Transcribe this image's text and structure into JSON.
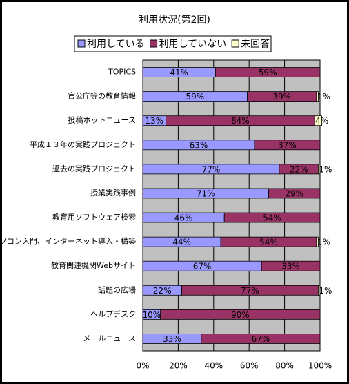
{
  "chart_data": {
    "type": "bar",
    "orientation": "horizontal",
    "stacked": true,
    "title": "利用状況(第2回)",
    "categories": [
      "TOPICS",
      "官公庁等の教育情報",
      "投稿ホットニュース",
      "平成１３年の実践プロジェクト",
      "過去の実践プロジェクト",
      "授業実践事例",
      "教育用ソフトウェア検索",
      "パソコン入門、インターネット導入・構築",
      "教育関連機関Webサイト",
      "話題の広場",
      "ヘルプデスク",
      "メールニュース"
    ],
    "series": [
      {
        "name": "利用している",
        "color": "#9999ff",
        "values": [
          41,
          59,
          13,
          63,
          77,
          71,
          46,
          44,
          67,
          22,
          10,
          33
        ],
        "value_labels": [
          "41%",
          "59%",
          "13%",
          "63%",
          "77%",
          "71%",
          "46%",
          "44%",
          "67%",
          "22%",
          "10%",
          "33%"
        ]
      },
      {
        "name": "利用していない",
        "color": "#993366",
        "values": [
          59,
          39,
          84,
          37,
          22,
          29,
          54,
          54,
          33,
          77,
          90,
          67
        ],
        "value_labels": [
          "59%",
          "39%",
          "84%",
          "37%",
          "22%",
          "29%",
          "54%",
          "54%",
          "33%",
          "77%",
          "90%",
          "67%"
        ]
      },
      {
        "name": "未回答",
        "color": "#ffffcc",
        "values": [
          null,
          1,
          4,
          null,
          1,
          null,
          null,
          1,
          null,
          1,
          null,
          null
        ],
        "value_labels": [
          null,
          "1%",
          "4%",
          null,
          "1%",
          null,
          null,
          "1%",
          null,
          "1%",
          null,
          null
        ]
      }
    ],
    "xlim": [
      0,
      100
    ],
    "xticks": [
      {
        "value": 0,
        "label": "0%"
      },
      {
        "value": 20,
        "label": "20%"
      },
      {
        "value": 40,
        "label": "40%"
      },
      {
        "value": 60,
        "label": "60%"
      },
      {
        "value": 80,
        "label": "80%"
      },
      {
        "value": 100,
        "label": "100%"
      }
    ],
    "grid": true,
    "legend": "top"
  }
}
